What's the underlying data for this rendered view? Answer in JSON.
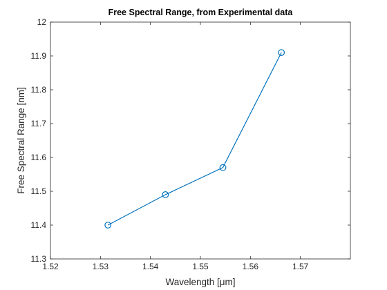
{
  "chart_data": {
    "type": "line",
    "title": "Free Spectral Range, from Experimental data",
    "xlabel": "Wavelength [μm]",
    "ylabel": "Free Spectral Range [nm]",
    "xlim": [
      1.52,
      1.58
    ],
    "ylim": [
      11.3,
      12.0
    ],
    "xticks": [
      1.52,
      1.53,
      1.54,
      1.55,
      1.56,
      1.57
    ],
    "xtick_labels": [
      "1.52",
      "1.53",
      "1.54",
      "1.55",
      "1.56",
      "1.57"
    ],
    "yticks": [
      11.3,
      11.4,
      11.5,
      11.6,
      11.7,
      11.8,
      11.9,
      12.0
    ],
    "ytick_labels": [
      "11.3",
      "11.4",
      "11.5",
      "11.6",
      "11.7",
      "11.8",
      "11.9",
      "12"
    ],
    "grid": false,
    "series": [
      {
        "color": "#0072bd",
        "marker": "circle",
        "x": [
          1.5315,
          1.543,
          1.5545,
          1.5662
        ],
        "y": [
          11.4,
          11.49,
          11.57,
          11.91
        ]
      }
    ]
  }
}
